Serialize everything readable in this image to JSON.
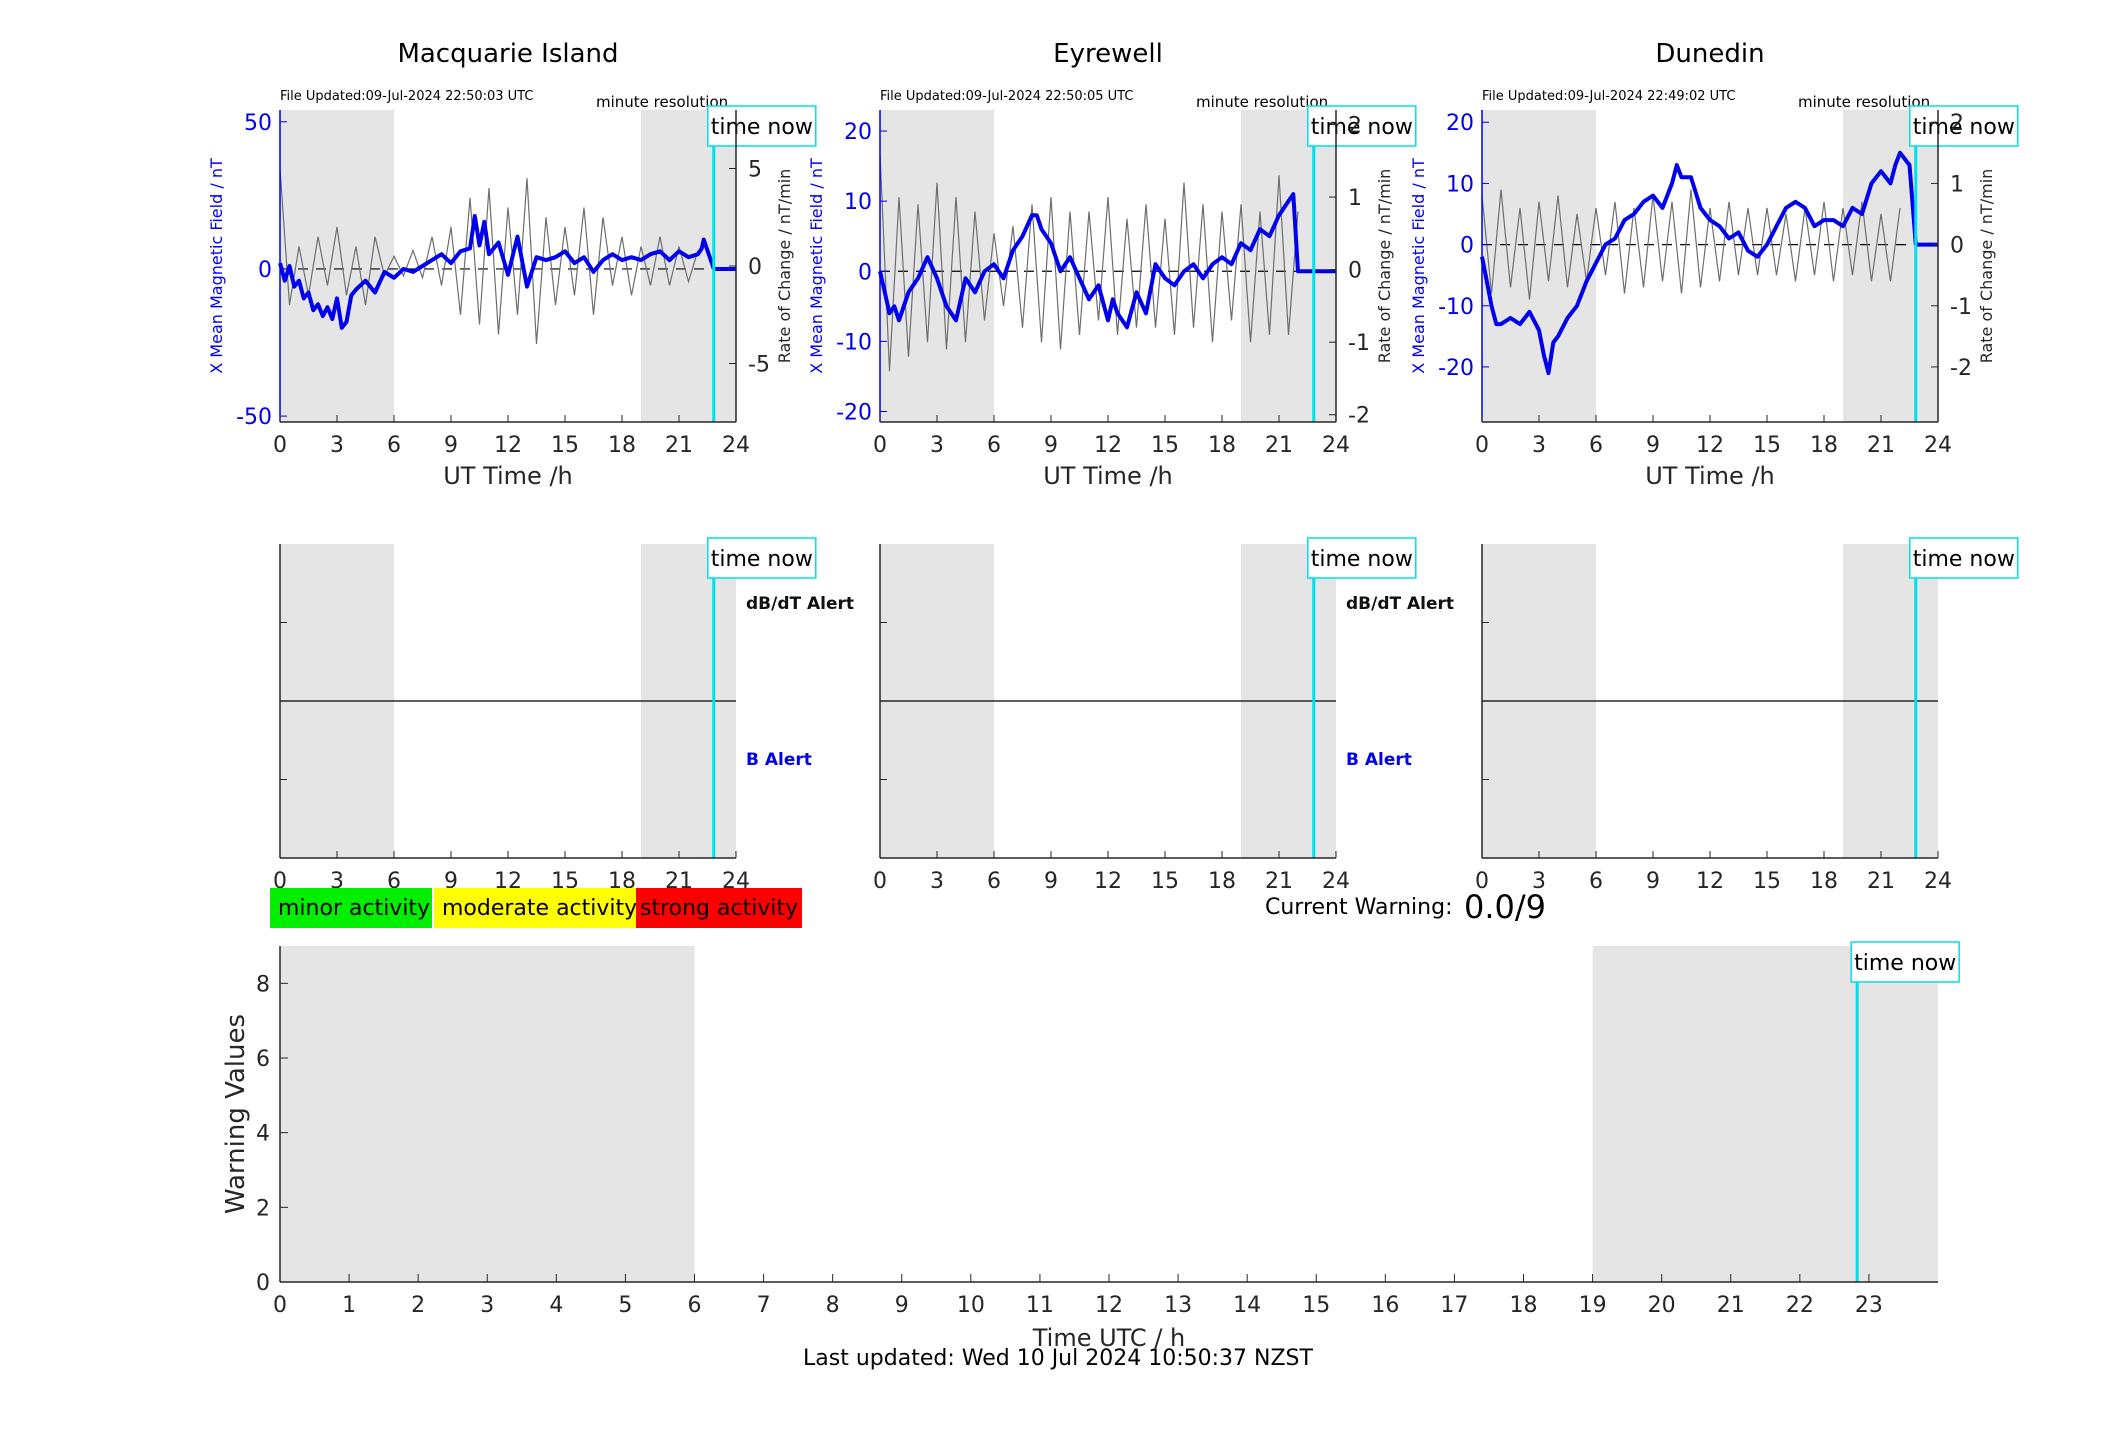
{
  "colors": {
    "b_series": "#0000ee",
    "rate_series": "#6e6e6e",
    "night_shade": "#e5e5e5",
    "time_now": "#00e0e8",
    "minor": "#00ee00",
    "moderate": "#ffff00",
    "strong": "#ff0000",
    "axis": "#262626",
    "text": "#000000"
  },
  "common": {
    "x_ticks": [
      "0",
      "3",
      "6",
      "9",
      "12",
      "15",
      "18",
      "21",
      "24"
    ],
    "xlabel": "UT Time /h",
    "time_now_label": "time now",
    "minute_resolution": "minute resolution",
    "left_ylabel": "X Mean Magnetic Field / nT",
    "right_ylabel": "Rate of Change / nT/min",
    "dbdt_alert_label": "dB/dT Alert",
    "b_alert_label": "B Alert"
  },
  "legend": {
    "minor": "minor activity",
    "moderate": "moderate activity",
    "strong": "strong activity"
  },
  "current_warning": {
    "label": "Current Warning:",
    "value": "0.0/9"
  },
  "footer": {
    "last_updated": "Last updated: Wed 10 Jul 2024 10:50:37 NZST"
  },
  "chart_data": [
    {
      "type": "line",
      "title": "Macquarie Island",
      "file_updated": "File Updated:09-Jul-2024 22:50:03 UTC",
      "xlabel": "UT Time /h",
      "ylabel": "X Mean Magnetic Field / nT",
      "y2label": "Rate of Change / nT/min",
      "xlim": [
        0,
        24
      ],
      "ylim": [
        -52,
        54
      ],
      "y2lim": [
        -8,
        8
      ],
      "y_ticks": [
        -50,
        0,
        50
      ],
      "y2_ticks": [
        -5,
        0,
        5
      ],
      "shaded_hours": [
        [
          0,
          6
        ],
        [
          19,
          24
        ]
      ],
      "time_now_hour": 22.83,
      "series": [
        {
          "role": "mean_field",
          "x": [
            0,
            0.25,
            0.5,
            0.75,
            1,
            1.25,
            1.5,
            1.75,
            2,
            2.25,
            2.5,
            2.75,
            3,
            3.25,
            3.5,
            3.75,
            4,
            4.5,
            5,
            5.5,
            6,
            6.5,
            7,
            7.5,
            8,
            8.5,
            9,
            9.5,
            10,
            10.25,
            10.5,
            10.75,
            11,
            11.5,
            12,
            12.5,
            13,
            13.5,
            14,
            14.5,
            15,
            15.5,
            16,
            16.5,
            17,
            17.5,
            18,
            18.5,
            19,
            19.5,
            20,
            20.5,
            21,
            21.5,
            22,
            22.2,
            22.3,
            22.83
          ],
          "values": [
            2,
            -4,
            1,
            -6,
            -4,
            -10,
            -8,
            -14,
            -12,
            -16,
            -13,
            -17,
            -10,
            -20,
            -18,
            -9,
            -7,
            -4,
            -8,
            -1,
            -3,
            0,
            -1,
            1,
            3,
            5,
            2,
            6,
            7,
            18,
            8,
            16,
            5,
            9,
            -2,
            11,
            -6,
            4,
            3,
            4,
            6,
            2,
            4,
            -1,
            3,
            5,
            3,
            4,
            3,
            5,
            6,
            3,
            6,
            4,
            5,
            7,
            10,
            0
          ]
        },
        {
          "role": "rate_of_change",
          "x": [
            0,
            0.5,
            1,
            1.5,
            2,
            2.5,
            3,
            3.5,
            4,
            4.5,
            5,
            5.5,
            6,
            6.5,
            7,
            7.5,
            8,
            8.5,
            9,
            9.5,
            10,
            10.5,
            11,
            11.5,
            12,
            12.5,
            13,
            13.5,
            14,
            14.5,
            15,
            15.5,
            16,
            16.5,
            17,
            17.5,
            18,
            18.5,
            19,
            19.5,
            20,
            20.5,
            21,
            21.5,
            22
          ],
          "values": [
            5,
            -2,
            1,
            -1.5,
            1.5,
            -1,
            2,
            -1.5,
            1,
            -2,
            1.5,
            -0.5,
            0.5,
            -0.5,
            0.8,
            -0.6,
            1.5,
            -1,
            2,
            -2.5,
            3.5,
            -3,
            4,
            -3.5,
            3,
            -2.5,
            4.5,
            -4,
            2.5,
            -2,
            2,
            -1.5,
            3,
            -2.5,
            2.5,
            -1,
            1.5,
            -1.5,
            1,
            -1,
            1.5,
            -1,
            1,
            -0.8,
            0.8
          ]
        }
      ]
    },
    {
      "type": "line",
      "title": "Eyrewell",
      "file_updated": "File Updated:09-Jul-2024 22:50:05 UTC",
      "xlabel": "UT Time /h",
      "ylabel": "X Mean Magnetic Field / nT",
      "y2label": "Rate of Change / nT/min",
      "xlim": [
        0,
        24
      ],
      "ylim": [
        -21.5,
        23
      ],
      "y2lim": [
        -2.1,
        2.2
      ],
      "y_ticks": [
        -20,
        -10,
        0,
        10,
        20
      ],
      "y2_ticks": [
        -2,
        -1,
        0,
        1,
        2
      ],
      "shaded_hours": [
        [
          0,
          6
        ],
        [
          19,
          24
        ]
      ],
      "time_now_hour": 22.83,
      "series": [
        {
          "role": "mean_field",
          "x": [
            0,
            0.25,
            0.5,
            0.75,
            1,
            1.5,
            2,
            2.5,
            3,
            3.5,
            4,
            4.5,
            5,
            5.5,
            6,
            6.5,
            7,
            7.5,
            8,
            8.25,
            8.5,
            9,
            9.5,
            10,
            10.5,
            11,
            11.5,
            12,
            12.25,
            12.5,
            13,
            13.5,
            14,
            14.5,
            15,
            15.5,
            16,
            16.5,
            17,
            17.5,
            18,
            18.5,
            19,
            19.5,
            20,
            20.5,
            21,
            21.5,
            21.75,
            22.0,
            22.83
          ],
          "values": [
            0,
            -3,
            -6,
            -5,
            -7,
            -3,
            -1,
            2,
            -1,
            -5,
            -7,
            -1,
            -3,
            0,
            1,
            -1,
            3,
            5,
            8,
            8,
            6,
            4,
            0,
            2,
            -1,
            -4,
            -2,
            -7,
            -4,
            -6,
            -8,
            -3,
            -6,
            1,
            -1,
            -2,
            0,
            1,
            -1,
            1,
            2,
            1,
            4,
            3,
            6,
            5,
            8,
            10,
            11,
            0,
            0
          ]
        },
        {
          "role": "rate_of_change",
          "x": [
            0,
            0.5,
            1,
            1.5,
            2,
            2.5,
            3,
            3.5,
            4,
            4.5,
            5,
            5.5,
            6,
            6.5,
            7,
            7.5,
            8,
            8.5,
            9,
            9.5,
            10,
            10.5,
            11,
            11.5,
            12,
            12.5,
            13,
            13.5,
            14,
            14.5,
            15,
            15.5,
            16,
            16.5,
            17,
            17.5,
            18,
            18.5,
            19,
            19.5,
            20,
            20.5,
            21,
            21.5,
            22
          ],
          "values": [
            1.6,
            -1.4,
            1,
            -1.2,
            0.9,
            -1,
            1.2,
            -1.1,
            1,
            -1,
            0.8,
            -0.7,
            0.5,
            -0.5,
            0.6,
            -0.8,
            0.9,
            -1,
            1,
            -1.1,
            0.8,
            -0.9,
            0.8,
            -0.7,
            1,
            -0.9,
            0.7,
            -0.8,
            0.9,
            -0.8,
            0.7,
            -0.9,
            1.2,
            -0.8,
            0.9,
            -1,
            0.8,
            -0.7,
            0.9,
            -1,
            0.8,
            -0.9,
            1.3,
            -0.9,
            0.8
          ]
        }
      ]
    },
    {
      "type": "line",
      "title": "Dunedin",
      "file_updated": "File Updated:09-Jul-2024 22:49:02 UTC",
      "xlabel": "UT Time /h",
      "ylabel": "X Mean Magnetic Field / nT",
      "y2label": "Rate of Change / nT/min",
      "xlim": [
        0,
        24
      ],
      "ylim": [
        -29,
        22
      ],
      "y2lim": [
        -2.9,
        2.2
      ],
      "y_ticks": [
        -20,
        -10,
        0,
        10,
        20
      ],
      "y2_ticks": [
        -2,
        -1,
        0,
        1,
        2
      ],
      "shaded_hours": [
        [
          0,
          6
        ],
        [
          19,
          24
        ]
      ],
      "time_now_hour": 22.83,
      "series": [
        {
          "role": "mean_field",
          "x": [
            0,
            0.25,
            0.5,
            0.75,
            1,
            1.5,
            2,
            2.5,
            3,
            3.25,
            3.5,
            3.75,
            4,
            4.5,
            5,
            5.5,
            6,
            6.5,
            7,
            7.5,
            8,
            8.5,
            9,
            9.5,
            10,
            10.25,
            10.5,
            11,
            11.5,
            12,
            12.5,
            13,
            13.5,
            14,
            14.5,
            15,
            15.5,
            16,
            16.5,
            17,
            17.5,
            18,
            18.5,
            19,
            19.5,
            20,
            20.5,
            21,
            21.5,
            21.75,
            22.0,
            22.5,
            22.83
          ],
          "values": [
            -2,
            -6,
            -10,
            -13,
            -13,
            -12,
            -13,
            -11,
            -14,
            -18,
            -21,
            -16,
            -15,
            -12,
            -10,
            -6,
            -3,
            0,
            1,
            4,
            5,
            7,
            8,
            6,
            10,
            13,
            11,
            11,
            6,
            4,
            3,
            1,
            2,
            -1,
            -2,
            0,
            3,
            6,
            7,
            6,
            3,
            4,
            4,
            3,
            6,
            5,
            10,
            12,
            10,
            13,
            15,
            13,
            0
          ]
        },
        {
          "role": "rate_of_change",
          "x": [
            0,
            0.5,
            1,
            1.5,
            2,
            2.5,
            3,
            3.5,
            4,
            4.5,
            5,
            5.5,
            6,
            6.5,
            7,
            7.5,
            8,
            8.5,
            9,
            9.5,
            10,
            10.5,
            11,
            11.5,
            12,
            12.5,
            13,
            13.5,
            14,
            14.5,
            15,
            15.5,
            16,
            16.5,
            17,
            17.5,
            18,
            18.5,
            19,
            19.5,
            20,
            20.5,
            21,
            21.5,
            22
          ],
          "values": [
            0.8,
            -0.8,
            0.9,
            -0.7,
            0.6,
            -0.9,
            0.7,
            -0.6,
            0.8,
            -0.7,
            0.5,
            -0.6,
            0.6,
            -0.5,
            0.7,
            -0.8,
            0.6,
            -0.7,
            0.8,
            -0.6,
            0.7,
            -0.8,
            0.9,
            -0.7,
            0.6,
            -0.6,
            0.7,
            -0.5,
            0.6,
            -0.5,
            0.6,
            -0.5,
            0.5,
            -0.6,
            0.6,
            -0.5,
            0.7,
            -0.6,
            0.6,
            -0.5,
            0.7,
            -0.6,
            0.5,
            -0.6,
            0.6
          ]
        }
      ]
    },
    {
      "type": "line",
      "title": "",
      "xlabel": "Time UTC / h",
      "ylabel": "Warning Values",
      "xlim": [
        0,
        24
      ],
      "ylim": [
        0,
        9
      ],
      "x_ticks": [
        "0",
        "1",
        "2",
        "3",
        "4",
        "5",
        "6",
        "7",
        "8",
        "9",
        "10",
        "11",
        "12",
        "13",
        "14",
        "15",
        "16",
        "17",
        "18",
        "19",
        "20",
        "21",
        "22",
        "23"
      ],
      "y_ticks": [
        0,
        2,
        4,
        6,
        8
      ],
      "shaded_hours": [
        [
          0,
          6
        ],
        [
          19,
          24
        ]
      ],
      "time_now_hour": 22.83,
      "series": []
    }
  ]
}
